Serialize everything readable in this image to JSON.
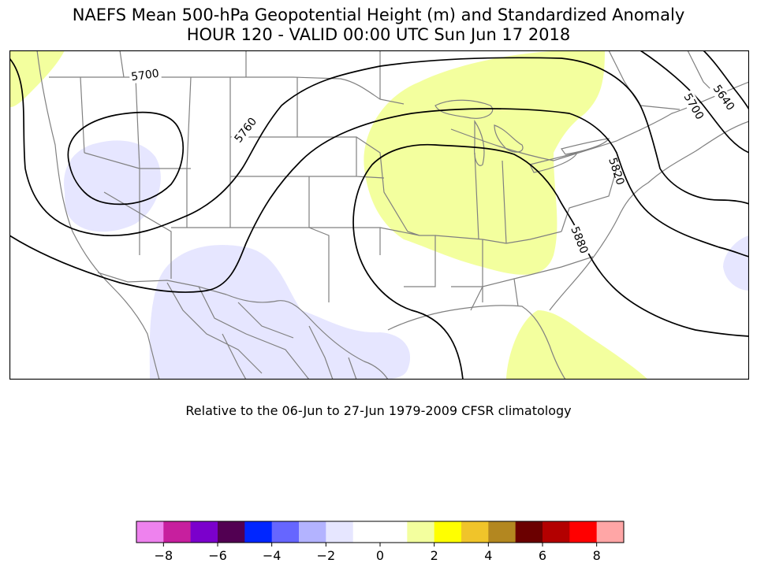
{
  "header": {
    "title": "NAEFS Mean 500-hPa Geopotential Height (m) and Standardized Anomaly",
    "subtitle": "HOUR 120 - VALID 00:00 UTC Sun Jun 17 2018"
  },
  "climatology_note": "Relative to the 06-Jun to 27-Jun 1979-2009 CFSR climatology",
  "contours": [
    {
      "label": "5700"
    },
    {
      "label": "5760"
    },
    {
      "label": "5820"
    },
    {
      "label": "5880"
    },
    {
      "label": "5640"
    },
    {
      "label": "5700"
    }
  ],
  "anomaly_regions": [
    {
      "name": "great-lakes-positive",
      "value": 1.5
    },
    {
      "name": "florida-positive",
      "value": 1.5
    },
    {
      "name": "canada-northwest-positive",
      "value": 1.5
    },
    {
      "name": "great-basin-negative",
      "value": -1.5
    },
    {
      "name": "mexico-negative",
      "value": -1.5
    },
    {
      "name": "atlantic-negative",
      "value": -1.5
    }
  ],
  "colorbar": {
    "colors": [
      "#ee82ee",
      "#c71f9e",
      "#7b00cc",
      "#520052",
      "#0026ff",
      "#6666ff",
      "#b3b3ff",
      "#e6e6ff",
      "#ffffff",
      "#ffffff",
      "#f3ff9e",
      "#ffff00",
      "#f0c42a",
      "#b38720",
      "#6b0000",
      "#b30000",
      "#ff0000",
      "#ffa6a6"
    ],
    "ticks": [
      "−8",
      "−6",
      "−4",
      "−2",
      "0",
      "2",
      "4",
      "6",
      "8"
    ]
  },
  "colors": {
    "positive_fill": "#f3ff9e",
    "negative_fill": "#e6e6ff",
    "border": "#808080",
    "contour": "#000000"
  }
}
